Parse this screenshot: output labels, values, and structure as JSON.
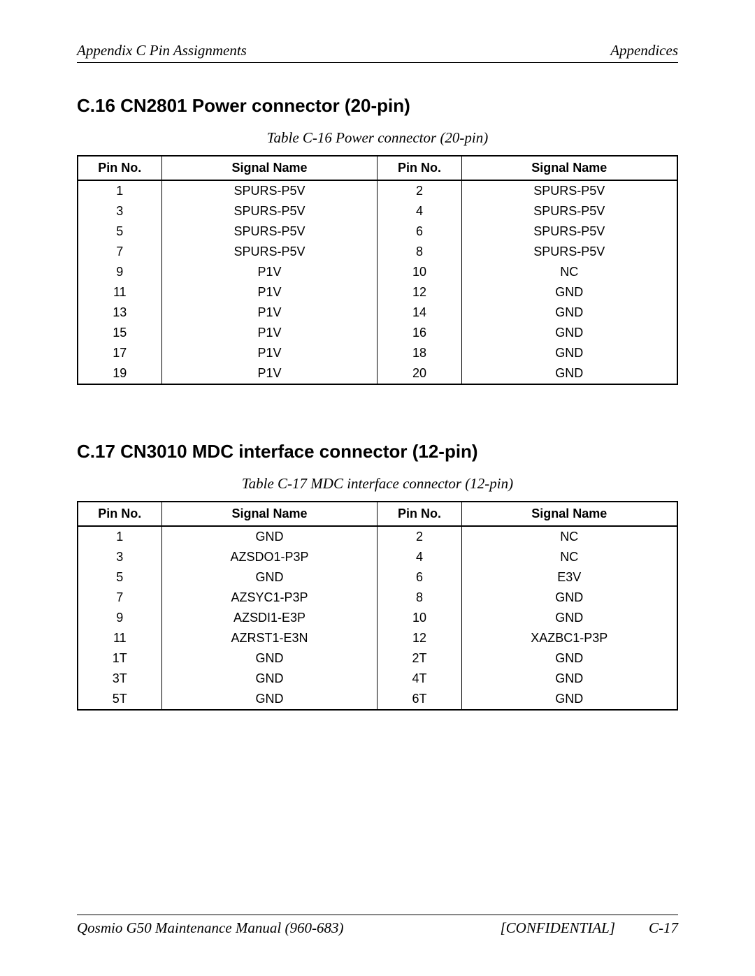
{
  "header": {
    "left": "Appendix C  Pin Assignments",
    "right": "Appendices"
  },
  "sections": [
    {
      "heading": "C.16  CN2801  Power connector (20-pin)",
      "caption": "Table C-16 Power connector  (20-pin)",
      "columns": [
        "Pin No.",
        "Signal Name",
        "Pin No.",
        "Signal Name"
      ],
      "rows": [
        [
          "1",
          "SPURS-P5V",
          "2",
          "SPURS-P5V"
        ],
        [
          "3",
          "SPURS-P5V",
          "4",
          "SPURS-P5V"
        ],
        [
          "5",
          "SPURS-P5V",
          "6",
          "SPURS-P5V"
        ],
        [
          "7",
          "SPURS-P5V",
          "8",
          "SPURS-P5V"
        ],
        [
          "9",
          "P1V",
          "10",
          "NC"
        ],
        [
          "11",
          "P1V",
          "12",
          "GND"
        ],
        [
          "13",
          "P1V",
          "14",
          "GND"
        ],
        [
          "15",
          "P1V",
          "16",
          "GND"
        ],
        [
          "17",
          "P1V",
          "18",
          "GND"
        ],
        [
          "19",
          "P1V",
          "20",
          "GND"
        ]
      ]
    },
    {
      "heading": "C.17  CN3010  MDC interface connector (12-pin)",
      "caption": "Table C-17 MDC interface connector  (12-pin)",
      "columns": [
        "Pin No.",
        "Signal Name",
        "Pin No.",
        "Signal Name"
      ],
      "rows": [
        [
          "1",
          "GND",
          "2",
          "NC"
        ],
        [
          "3",
          "AZSDO1-P3P",
          "4",
          "NC"
        ],
        [
          "5",
          "GND",
          "6",
          "E3V"
        ],
        [
          "7",
          "AZSYC1-P3P",
          "8",
          "GND"
        ],
        [
          "9",
          "AZSDI1-E3P",
          "10",
          "GND"
        ],
        [
          "11",
          "AZRST1-E3N",
          "12",
          "XAZBC1-P3P"
        ],
        [
          "1T",
          "GND",
          "2T",
          "GND"
        ],
        [
          "3T",
          "GND",
          "4T",
          "GND"
        ],
        [
          "5T",
          "GND",
          "6T",
          "GND"
        ]
      ]
    }
  ],
  "footer": {
    "left": "Qosmio G50 Maintenance Manual (960-683)",
    "center": "[CONFIDENTIAL]",
    "right": "C-17"
  }
}
